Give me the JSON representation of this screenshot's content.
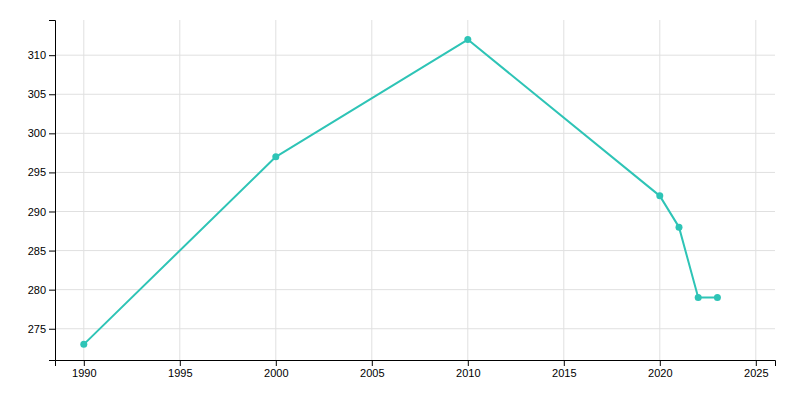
{
  "chart_data": {
    "type": "line",
    "x": [
      1990,
      2000,
      2010,
      2020,
      2021,
      2022,
      2023
    ],
    "values": [
      273,
      297,
      312,
      292,
      288,
      279,
      279
    ],
    "color": "#2ec4b6",
    "marker": "circle",
    "xlim": [
      1988.5,
      2026
    ],
    "ylim": [
      271,
      314.5
    ],
    "xticks": [
      1990,
      1995,
      2000,
      2005,
      2010,
      2015,
      2020,
      2025
    ],
    "yticks": [
      275,
      280,
      285,
      290,
      295,
      300,
      305,
      310
    ],
    "grid": true
  }
}
